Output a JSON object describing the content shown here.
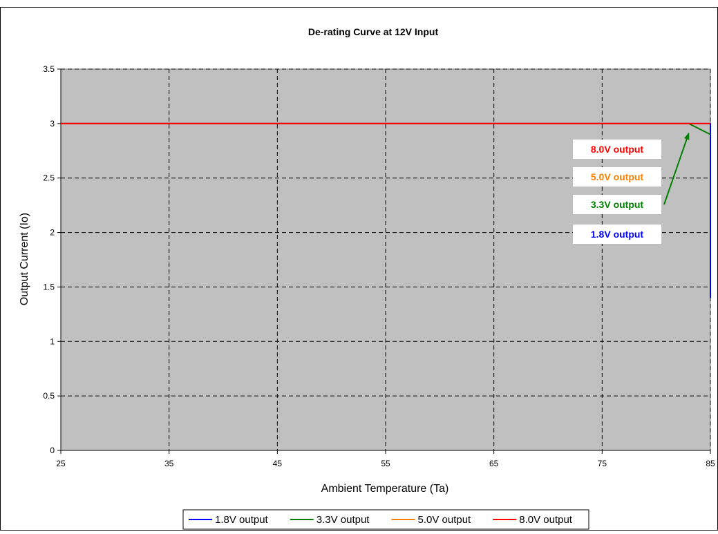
{
  "chart_data": {
    "type": "line",
    "title": "De-rating Curve at 12V Input",
    "xlabel": "Ambient Temperature (Ta)",
    "ylabel": "Output Current (Io)",
    "xlim": [
      25,
      85
    ],
    "ylim": [
      0,
      3.5
    ],
    "xticks": [
      25,
      35,
      45,
      55,
      65,
      75,
      85
    ],
    "yticks": [
      0,
      0.5,
      1,
      1.5,
      2,
      2.5,
      3,
      3.5
    ],
    "grid": true,
    "legend_position": "bottom",
    "series": [
      {
        "name": "1.8V output",
        "color": "#0000ff",
        "points": [
          [
            25,
            3
          ],
          [
            85,
            3
          ],
          [
            85,
            1.4
          ]
        ]
      },
      {
        "name": "3.3V output",
        "color": "#008000",
        "points": [
          [
            25,
            3
          ],
          [
            83,
            3
          ],
          [
            85,
            2.9
          ]
        ]
      },
      {
        "name": "5.0V output",
        "color": "#ff7f00",
        "points": [
          [
            25,
            3
          ],
          [
            85,
            3
          ]
        ]
      },
      {
        "name": "8.0V output",
        "color": "#ff0000",
        "points": [
          [
            25,
            3
          ],
          [
            85,
            3
          ]
        ]
      }
    ],
    "annotations": [
      {
        "text": "8.0V output",
        "color": "#ff0000"
      },
      {
        "text": "5.0V output",
        "color": "#ff7f00"
      },
      {
        "text": "3.3V output",
        "color": "#008000",
        "arrow_to": [
          83,
          3
        ]
      },
      {
        "text": "1.8V output",
        "color": "#0000ff"
      }
    ],
    "plot_background": "#c0c0c0"
  }
}
